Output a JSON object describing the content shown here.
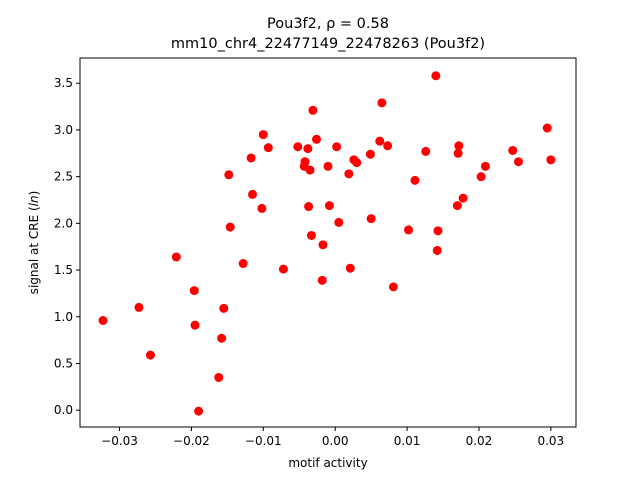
{
  "chart_data": {
    "type": "scatter",
    "title_line1": "Pou3f2, ρ = 0.58",
    "title_line2": "mm10_chr4_22477149_22478263 (Pou3f2)",
    "xlabel": "motif activity",
    "ylabel": "signal at CRE (ln)",
    "xlim": [
      -0.0355,
      0.0335
    ],
    "ylim": [
      -0.18,
      3.77
    ],
    "xticks": [
      -0.03,
      -0.02,
      -0.01,
      0.0,
      0.01,
      0.02,
      0.03
    ],
    "xtick_labels": [
      "−0.03",
      "−0.02",
      "−0.01",
      "0.00",
      "0.01",
      "0.02",
      "0.03"
    ],
    "yticks": [
      0.0,
      0.5,
      1.0,
      1.5,
      2.0,
      2.5,
      3.0,
      3.5
    ],
    "ytick_labels": [
      "0.0",
      "0.5",
      "1.0",
      "1.5",
      "2.0",
      "2.5",
      "3.0",
      "3.5"
    ],
    "grid": false,
    "marker_color": "#ff0000",
    "points": [
      [
        -0.0323,
        0.96
      ],
      [
        -0.0273,
        1.1
      ],
      [
        -0.0257,
        0.59
      ],
      [
        -0.0221,
        1.64
      ],
      [
        -0.0196,
        1.28
      ],
      [
        -0.0195,
        0.91
      ],
      [
        -0.019,
        -0.01
      ],
      [
        -0.0162,
        0.35
      ],
      [
        -0.0158,
        0.77
      ],
      [
        -0.0155,
        1.09
      ],
      [
        -0.0148,
        2.52
      ],
      [
        -0.0146,
        1.96
      ],
      [
        -0.0128,
        1.57
      ],
      [
        -0.0117,
        2.7
      ],
      [
        -0.0115,
        2.31
      ],
      [
        -0.0102,
        2.16
      ],
      [
        -0.01,
        2.95
      ],
      [
        -0.0093,
        2.81
      ],
      [
        -0.0072,
        1.51
      ],
      [
        -0.0052,
        2.82
      ],
      [
        -0.0043,
        2.61
      ],
      [
        -0.0042,
        2.66
      ],
      [
        -0.0038,
        2.8
      ],
      [
        -0.0037,
        2.18
      ],
      [
        -0.0035,
        2.57
      ],
      [
        -0.0033,
        1.87
      ],
      [
        -0.0031,
        3.21
      ],
      [
        -0.0026,
        2.9
      ],
      [
        -0.0018,
        1.39
      ],
      [
        -0.0017,
        1.77
      ],
      [
        -0.001,
        2.61
      ],
      [
        -0.0008,
        2.19
      ],
      [
        0.0002,
        2.82
      ],
      [
        0.0005,
        2.01
      ],
      [
        0.0019,
        2.53
      ],
      [
        0.0021,
        1.52
      ],
      [
        0.0026,
        2.68
      ],
      [
        0.003,
        2.65
      ],
      [
        0.0049,
        2.74
      ],
      [
        0.005,
        2.05
      ],
      [
        0.0062,
        2.88
      ],
      [
        0.0065,
        3.29
      ],
      [
        0.0073,
        2.83
      ],
      [
        0.0081,
        1.32
      ],
      [
        0.0102,
        1.93
      ],
      [
        0.0111,
        2.46
      ],
      [
        0.0126,
        2.77
      ],
      [
        0.014,
        3.58
      ],
      [
        0.0142,
        1.71
      ],
      [
        0.0143,
        1.92
      ],
      [
        0.017,
        2.19
      ],
      [
        0.0171,
        2.75
      ],
      [
        0.0172,
        2.83
      ],
      [
        0.0178,
        2.27
      ],
      [
        0.0203,
        2.5
      ],
      [
        0.0209,
        2.61
      ],
      [
        0.0247,
        2.78
      ],
      [
        0.0255,
        2.66
      ],
      [
        0.0295,
        3.02
      ],
      [
        0.03,
        2.68
      ]
    ]
  }
}
